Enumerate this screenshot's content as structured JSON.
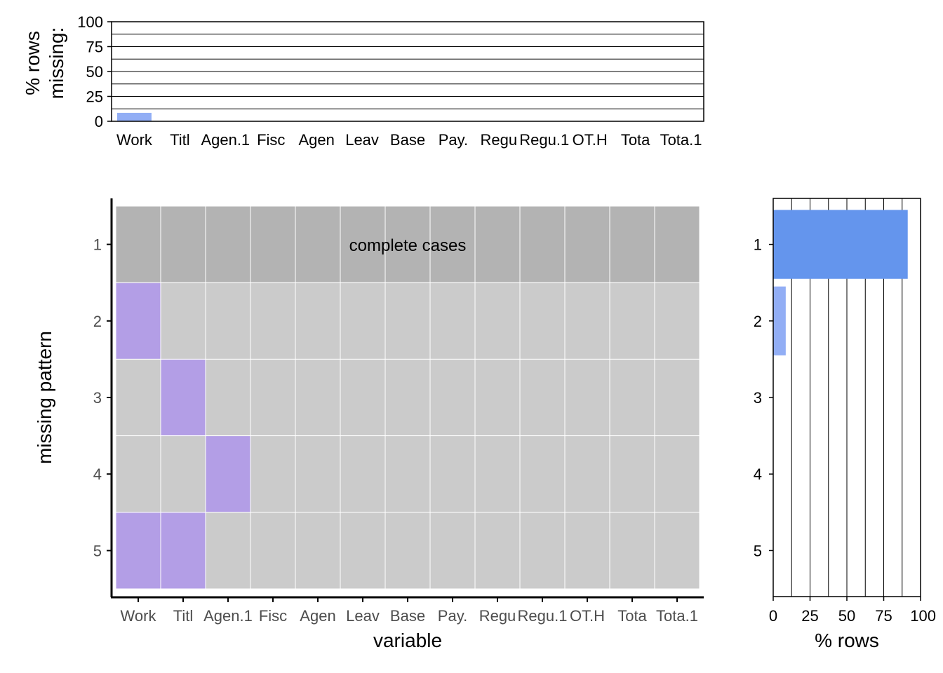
{
  "chart_data": [
    {
      "type": "bar",
      "panel": "variable-missingness",
      "categories": [
        "Work",
        "Titl",
        "Agen.1",
        "Fisc",
        "Agen",
        "Leav",
        "Base",
        "Pay.",
        "Regu",
        "Regu.1",
        "OT.H",
        "Tota",
        "Tota.1"
      ],
      "values": [
        8.5,
        0.15,
        0.05,
        0,
        0,
        0,
        0,
        0,
        0,
        0,
        0,
        0,
        0
      ],
      "ylabel_lines": [
        "% rows",
        "missing:"
      ],
      "ylim": [
        0,
        100
      ],
      "yticks": [
        0,
        25,
        50,
        75,
        100
      ],
      "gridlines": [
        0,
        12.5,
        25,
        37.5,
        50,
        62.5,
        75,
        87.5,
        100
      ],
      "bar_color": "#92aef5"
    },
    {
      "type": "heatmap",
      "panel": "missing-pattern-matrix",
      "columns": [
        "Work",
        "Titl",
        "Agen.1",
        "Fisc",
        "Agen",
        "Leav",
        "Base",
        "Pay.",
        "Regu",
        "Regu.1",
        "OT.H",
        "Tota",
        "Tota.1"
      ],
      "rows": [
        "1",
        "2",
        "3",
        "4",
        "5"
      ],
      "missing": [
        [
          0,
          0,
          0,
          0,
          0,
          0,
          0,
          0,
          0,
          0,
          0,
          0,
          0
        ],
        [
          1,
          0,
          0,
          0,
          0,
          0,
          0,
          0,
          0,
          0,
          0,
          0,
          0
        ],
        [
          0,
          1,
          0,
          0,
          0,
          0,
          0,
          0,
          0,
          0,
          0,
          0,
          0
        ],
        [
          0,
          0,
          1,
          0,
          0,
          0,
          0,
          0,
          0,
          0,
          0,
          0,
          0
        ],
        [
          1,
          1,
          0,
          0,
          0,
          0,
          0,
          0,
          0,
          0,
          0,
          0,
          0
        ]
      ],
      "complete_row_label": "complete cases",
      "xlabel": "variable",
      "ylabel": "missing pattern",
      "colors": {
        "complete": "#b3b3b3",
        "present": "#cbcbcb",
        "missing": "#b39ee6"
      }
    },
    {
      "type": "bar",
      "orientation": "horizontal",
      "panel": "pattern-frequency",
      "categories": [
        "1",
        "2",
        "3",
        "4",
        "5"
      ],
      "values": [
        91.3,
        8.5,
        0.1,
        0.05,
        0.05
      ],
      "xlabel": "% rows",
      "xlim": [
        0,
        100
      ],
      "xticks": [
        0,
        25,
        50,
        75,
        100
      ],
      "gridlines": [
        0,
        12.5,
        25,
        37.5,
        50,
        62.5,
        75,
        87.5,
        100
      ],
      "colors": {
        "complete": "#6495ed",
        "other": "#92aef5"
      }
    }
  ]
}
